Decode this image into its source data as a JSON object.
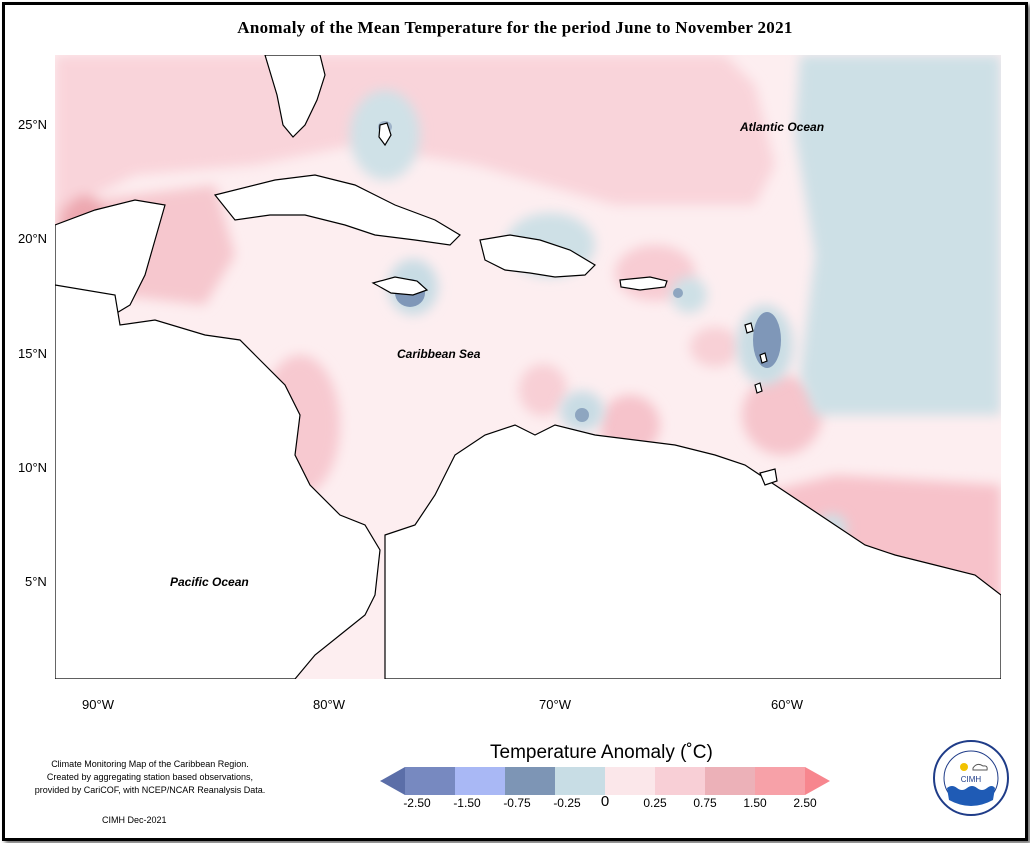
{
  "title": "Anomaly of the Mean Temperature for the period June to November 2021",
  "axes": {
    "latitude_ticks": [
      {
        "value": 25,
        "label": "25°N"
      },
      {
        "value": 20,
        "label": "20°N"
      },
      {
        "value": 15,
        "label": "15°N"
      },
      {
        "value": 10,
        "label": "10°N"
      },
      {
        "value": 5,
        "label": "5°N"
      }
    ],
    "longitude_ticks": [
      {
        "value": -90,
        "label": "90°W"
      },
      {
        "value": -80,
        "label": "80°W"
      },
      {
        "value": -70,
        "label": "70°W"
      },
      {
        "value": -60,
        "label": "60°W"
      }
    ]
  },
  "labels": {
    "atlantic": "Atlantic Ocean",
    "caribbean": "Caribbean Sea",
    "pacific": "Pacific Ocean"
  },
  "credits": {
    "line1": "Climate Monitoring Map of the Caribbean Region.",
    "line2": "Created by aggregating station based observations,",
    "line3": "provided by CariCOF, with NCEP/NCAR Reanalysis Data.",
    "date": "CIMH Dec-2021"
  },
  "legend": {
    "title": "Temperature Anomaly (˚C)",
    "ticks": [
      "-2.50",
      "-1.50",
      "-0.75",
      "-0.25",
      "0",
      "0.25",
      "0.75",
      "1.50",
      "2.50"
    ],
    "colors": [
      "#5b6ea8",
      "#8e9fd6",
      "#a9b8f5",
      "#7d95b5",
      "#c8dde5",
      "#fbe7ea",
      "#f8cfd6",
      "#ecb1b8",
      "#f7868e"
    ]
  },
  "logo": {
    "ring_text": "Caribbean Institute for Meteorology and Hydrology",
    "abbr": "CIMH"
  }
}
